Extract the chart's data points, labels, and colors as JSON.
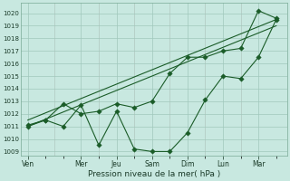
{
  "xlabel": "Pression niveau de la mer( hPa )",
  "ylim": [
    1008.7,
    1020.8
  ],
  "yticks": [
    1009,
    1010,
    1011,
    1012,
    1013,
    1014,
    1015,
    1016,
    1017,
    1018,
    1019,
    1020
  ],
  "x_labels": [
    "Ven",
    "Mer",
    "Jeu",
    "Sam",
    "Dim",
    "Lun",
    "Mar"
  ],
  "bg_color": "#c8e8e0",
  "grid_color": "#a0c8bc",
  "line_color": "#1a5c28",
  "figsize": [
    3.2,
    2.0
  ],
  "dpi": 100,
  "s1_x": [
    0.0,
    0.5,
    1.0,
    1.5,
    2.0,
    2.5,
    3.0,
    3.5,
    4.0,
    4.5,
    5.0,
    5.5,
    6.0,
    6.5,
    7.0
  ],
  "s1_y": [
    1011.0,
    1011.5,
    1011.0,
    1012.7,
    1009.5,
    1012.2,
    1009.2,
    1009.0,
    1009.0,
    1010.5,
    1013.1,
    1015.0,
    1014.8,
    1016.5,
    1019.5
  ],
  "s2_x": [
    0.0,
    0.5,
    1.0,
    1.5,
    2.0,
    2.5,
    3.0,
    3.5,
    4.0,
    4.5,
    5.0,
    5.5,
    6.0,
    6.5,
    7.0
  ],
  "s2_y": [
    1011.1,
    1011.5,
    1012.8,
    1012.0,
    1012.2,
    1012.8,
    1012.5,
    1013.0,
    1015.2,
    1016.5,
    1016.5,
    1017.0,
    1017.2,
    1020.2,
    1019.6
  ],
  "trend1_x": [
    0.0,
    7.0
  ],
  "trend1_y": [
    1011.0,
    1019.0
  ],
  "trend2_x": [
    0.0,
    7.0
  ],
  "trend2_y": [
    1011.5,
    1019.5
  ],
  "day_x": [
    0.0,
    1.5,
    2.5,
    3.5,
    4.5,
    5.5,
    6.5
  ],
  "day_dividers": [
    0.75,
    2.0,
    3.0,
    4.0,
    5.0,
    6.0
  ],
  "xlim": [
    -0.2,
    7.3
  ]
}
